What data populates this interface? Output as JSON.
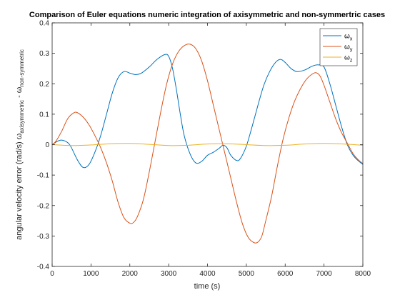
{
  "chart_data": {
    "type": "line",
    "title": "Comparison of Euler equations numeric integration of axisymmetric and non-symmertric cases",
    "xlabel": "time (s)",
    "ylabel": {
      "prefix": "angular velocity error (rad/s)",
      "omega": "ω",
      "sub_a": "axisymmetric",
      "dash": " - ",
      "sub_b": "non-symmetric"
    },
    "xlim": [
      0,
      8000
    ],
    "ylim": [
      -0.4,
      0.4
    ],
    "xticks": [
      0,
      1000,
      2000,
      3000,
      4000,
      5000,
      6000,
      7000,
      8000
    ],
    "xtick_labels": [
      "0",
      "1000",
      "2000",
      "3000",
      "4000",
      "5000",
      "6000",
      "7000",
      "8000"
    ],
    "yticks": [
      -0.4,
      -0.3,
      -0.2,
      -0.1,
      0,
      0.1,
      0.2,
      0.3,
      0.4
    ],
    "ytick_labels": [
      "-0.4",
      "-0.3",
      "-0.2",
      "-0.1",
      "0",
      "0.1",
      "0.2",
      "0.3",
      "0.4"
    ],
    "grid": false,
    "legend_position": "top-right",
    "series": [
      {
        "name": "ω",
        "subscript": "x",
        "color": "#0072BD",
        "points": [
          [
            0,
            0
          ],
          [
            150,
            0.012
          ],
          [
            280,
            0.014
          ],
          [
            450,
            0
          ],
          [
            650,
            -0.05
          ],
          [
            800,
            -0.075
          ],
          [
            950,
            -0.065
          ],
          [
            1100,
            -0.025
          ],
          [
            1250,
            0.03
          ],
          [
            1400,
            0.1
          ],
          [
            1550,
            0.17
          ],
          [
            1700,
            0.22
          ],
          [
            1850,
            0.24
          ],
          [
            2000,
            0.235
          ],
          [
            2150,
            0.23
          ],
          [
            2300,
            0.235
          ],
          [
            2500,
            0.255
          ],
          [
            2700,
            0.28
          ],
          [
            2900,
            0.296
          ],
          [
            3000,
            0.29
          ],
          [
            3100,
            0.25
          ],
          [
            3200,
            0.18
          ],
          [
            3300,
            0.1
          ],
          [
            3400,
            0.03
          ],
          [
            3550,
            -0.03
          ],
          [
            3700,
            -0.06
          ],
          [
            3850,
            -0.055
          ],
          [
            4000,
            -0.035
          ],
          [
            4150,
            -0.025
          ],
          [
            4300,
            -0.012
          ],
          [
            4400,
            -0.002
          ],
          [
            4500,
            -0.01
          ],
          [
            4600,
            -0.035
          ],
          [
            4750,
            -0.052
          ],
          [
            4850,
            -0.045
          ],
          [
            5000,
            -0.005
          ],
          [
            5150,
            0.06
          ],
          [
            5300,
            0.13
          ],
          [
            5450,
            0.195
          ],
          [
            5600,
            0.24
          ],
          [
            5750,
            0.27
          ],
          [
            5880,
            0.28
          ],
          [
            6000,
            0.27
          ],
          [
            6150,
            0.25
          ],
          [
            6300,
            0.24
          ],
          [
            6500,
            0.245
          ],
          [
            6700,
            0.258
          ],
          [
            6850,
            0.262
          ],
          [
            7000,
            0.255
          ],
          [
            7150,
            0.2
          ],
          [
            7300,
            0.13
          ],
          [
            7450,
            0.06
          ],
          [
            7600,
            0.0
          ],
          [
            7750,
            -0.035
          ],
          [
            7900,
            -0.055
          ],
          [
            8000,
            -0.065
          ]
        ]
      },
      {
        "name": "ω",
        "subscript": "y",
        "color": "#D95319",
        "points": [
          [
            0,
            0
          ],
          [
            100,
            0.012
          ],
          [
            250,
            0.045
          ],
          [
            400,
            0.085
          ],
          [
            550,
            0.104
          ],
          [
            650,
            0.105
          ],
          [
            800,
            0.09
          ],
          [
            950,
            0.065
          ],
          [
            1100,
            0.03
          ],
          [
            1250,
            -0.01
          ],
          [
            1400,
            -0.06
          ],
          [
            1550,
            -0.12
          ],
          [
            1700,
            -0.19
          ],
          [
            1850,
            -0.24
          ],
          [
            2000,
            -0.258
          ],
          [
            2100,
            -0.255
          ],
          [
            2200,
            -0.235
          ],
          [
            2350,
            -0.18
          ],
          [
            2500,
            -0.09
          ],
          [
            2650,
            0.01
          ],
          [
            2800,
            0.11
          ],
          [
            2950,
            0.2
          ],
          [
            3100,
            0.265
          ],
          [
            3250,
            0.305
          ],
          [
            3400,
            0.325
          ],
          [
            3550,
            0.33
          ],
          [
            3700,
            0.315
          ],
          [
            3850,
            0.275
          ],
          [
            4000,
            0.21
          ],
          [
            4150,
            0.13
          ],
          [
            4300,
            0.05
          ],
          [
            4450,
            -0.03
          ],
          [
            4600,
            -0.11
          ],
          [
            4750,
            -0.19
          ],
          [
            4900,
            -0.26
          ],
          [
            5050,
            -0.305
          ],
          [
            5200,
            -0.322
          ],
          [
            5300,
            -0.32
          ],
          [
            5400,
            -0.3
          ],
          [
            5500,
            -0.25
          ],
          [
            5650,
            -0.17
          ],
          [
            5800,
            -0.07
          ],
          [
            5950,
            0.02
          ],
          [
            6100,
            0.09
          ],
          [
            6250,
            0.145
          ],
          [
            6400,
            0.185
          ],
          [
            6550,
            0.215
          ],
          [
            6700,
            0.232
          ],
          [
            6800,
            0.236
          ],
          [
            6900,
            0.225
          ],
          [
            7000,
            0.195
          ],
          [
            7150,
            0.14
          ],
          [
            7300,
            0.085
          ],
          [
            7450,
            0.04
          ],
          [
            7600,
            0.005
          ],
          [
            7750,
            -0.03
          ],
          [
            7900,
            -0.052
          ],
          [
            8000,
            -0.062
          ]
        ]
      },
      {
        "name": "ω",
        "subscript": "z",
        "color": "#EDB120",
        "points": [
          [
            0,
            0
          ],
          [
            500,
            -0.003
          ],
          [
            1000,
            -0.001
          ],
          [
            1500,
            0.003
          ],
          [
            2000,
            0.004
          ],
          [
            2500,
            0.001
          ],
          [
            3000,
            -0.003
          ],
          [
            3500,
            -0.002
          ],
          [
            4000,
            0.002
          ],
          [
            4500,
            0.003
          ],
          [
            5000,
            0.0
          ],
          [
            5500,
            -0.003
          ],
          [
            6000,
            -0.002
          ],
          [
            6500,
            0.002
          ],
          [
            7000,
            0.004
          ],
          [
            7500,
            0.002
          ],
          [
            8000,
            -0.002
          ]
        ]
      }
    ]
  }
}
